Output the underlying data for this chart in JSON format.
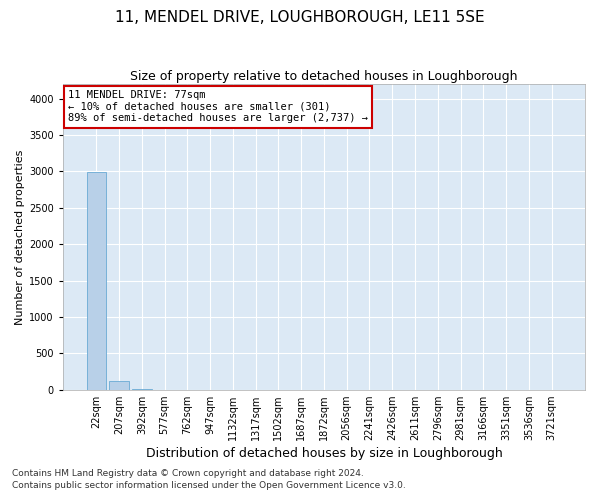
{
  "title": "11, MENDEL DRIVE, LOUGHBOROUGH, LE11 5SE",
  "subtitle": "Size of property relative to detached houses in Loughborough",
  "xlabel": "Distribution of detached houses by size in Loughborough",
  "ylabel": "Number of detached properties",
  "footnote1": "Contains HM Land Registry data © Crown copyright and database right 2024.",
  "footnote2": "Contains public sector information licensed under the Open Government Licence v3.0.",
  "bar_color": "#b8d0e8",
  "bar_edge_color": "#6aaad4",
  "bg_color": "#dce9f5",
  "grid_color": "#ffffff",
  "annotation_line1": "11 MENDEL DRIVE: 77sqm",
  "annotation_line2": "← 10% of detached houses are smaller (301)",
  "annotation_line3": "89% of semi-detached houses are larger (2,737) →",
  "annotation_box_color": "#ffffff",
  "annotation_edge_color": "#cc0000",
  "categories": [
    "22sqm",
    "207sqm",
    "392sqm",
    "577sqm",
    "762sqm",
    "947sqm",
    "1132sqm",
    "1317sqm",
    "1502sqm",
    "1687sqm",
    "1872sqm",
    "2056sqm",
    "2241sqm",
    "2426sqm",
    "2611sqm",
    "2796sqm",
    "2981sqm",
    "3166sqm",
    "3351sqm",
    "3536sqm",
    "3721sqm"
  ],
  "values": [
    2990,
    115,
    3,
    1,
    0,
    0,
    0,
    0,
    0,
    0,
    0,
    0,
    0,
    0,
    0,
    0,
    0,
    0,
    0,
    0,
    0
  ],
  "ylim": [
    0,
    4200
  ],
  "yticks": [
    0,
    500,
    1000,
    1500,
    2000,
    2500,
    3000,
    3500,
    4000
  ],
  "title_fontsize": 11,
  "subtitle_fontsize": 9,
  "annotation_fontsize": 7.5,
  "xlabel_fontsize": 9,
  "ylabel_fontsize": 8,
  "tick_fontsize": 7,
  "footnote_fontsize": 6.5
}
